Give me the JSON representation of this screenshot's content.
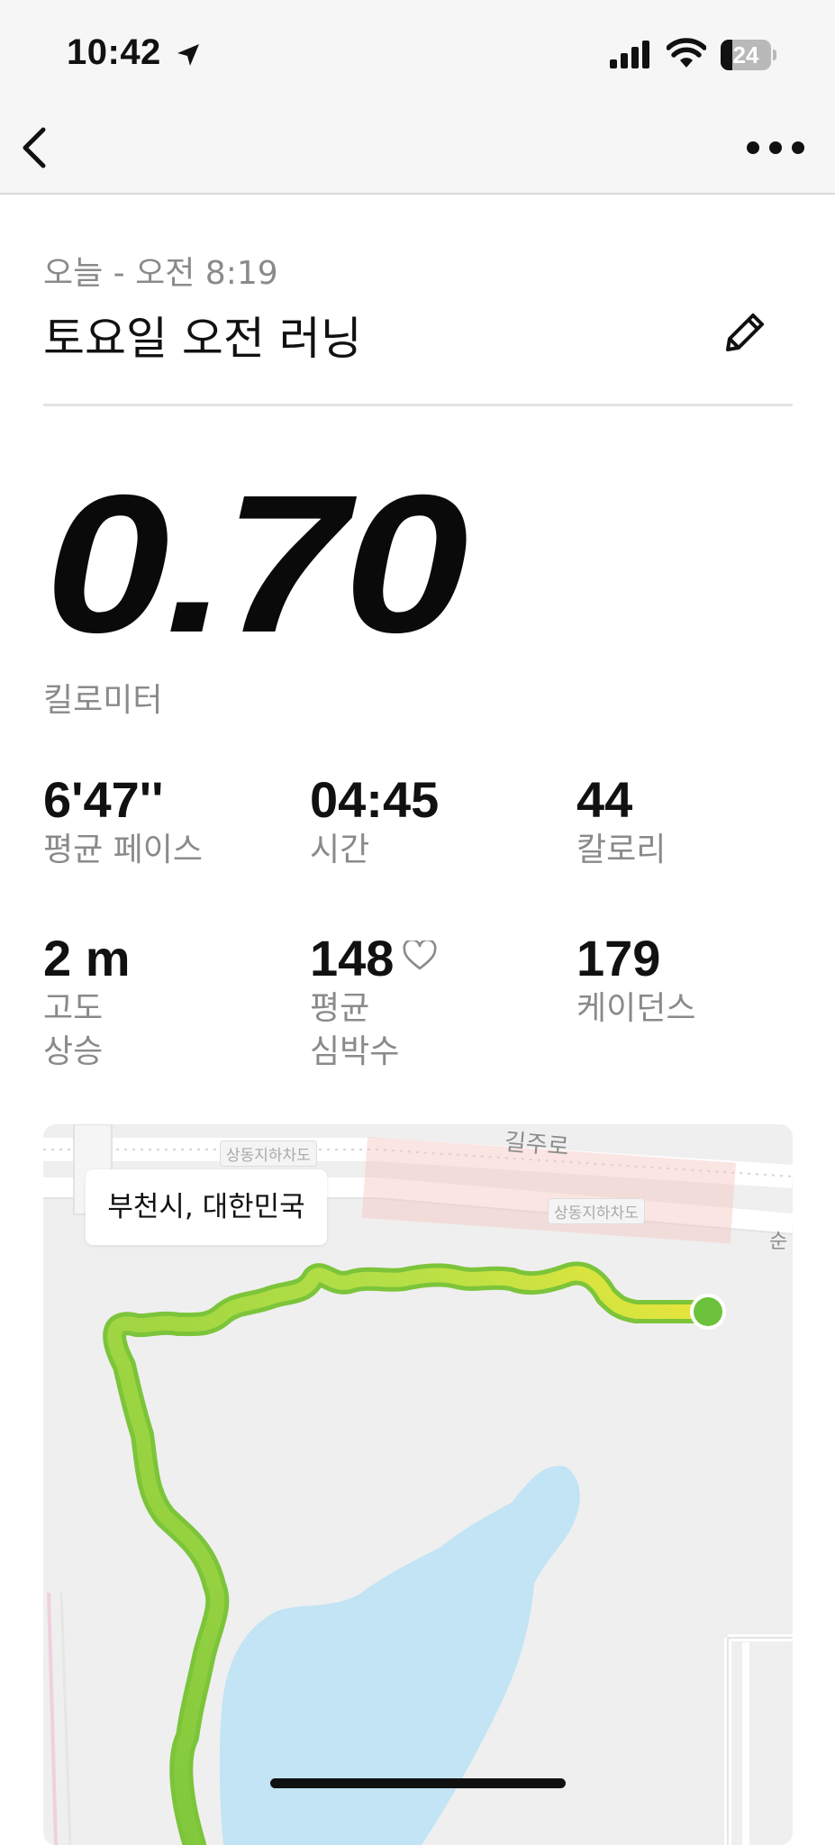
{
  "status_bar": {
    "time": "10:42",
    "battery_level": "24",
    "battery_fraction": 0.24,
    "icons": [
      "location-arrow-icon",
      "cellular-signal-icon",
      "wifi-icon",
      "battery-icon"
    ]
  },
  "nav": {
    "back_icon": "chevron-left-icon",
    "more_icon": "ellipsis-icon"
  },
  "activity": {
    "date_time": "오늘 - 오전 8:19",
    "title": "토요일 오전 러닝",
    "edit_icon": "pencil-icon",
    "distance": "0.70",
    "distance_unit": "킬로미터"
  },
  "stats": {
    "pace": {
      "value": "6'47''",
      "label": "평균 페이스"
    },
    "time": {
      "value": "04:45",
      "label": "시간"
    },
    "calories": {
      "value": "44",
      "label": "칼로리"
    },
    "elevation": {
      "value": "2 m",
      "label_line1": "고도",
      "label_line2": "상승"
    },
    "heart_rate": {
      "value": "148",
      "label_line1": "평균",
      "label_line2": "심박수",
      "icon": "heart-outline-icon"
    },
    "cadence": {
      "value": "179",
      "label": "케이던스"
    }
  },
  "map": {
    "location": "부천시, 대한민국",
    "road_label": "길주로",
    "underpass_label_1": "상동지하차도",
    "underpass_label_2": "상동지하차도",
    "partial_label": "순",
    "route_colors": {
      "start": "#f0e63a",
      "end": "#7cc63c"
    },
    "start_marker_color": "#6cc23a",
    "water_color": "#c2e4f4"
  }
}
